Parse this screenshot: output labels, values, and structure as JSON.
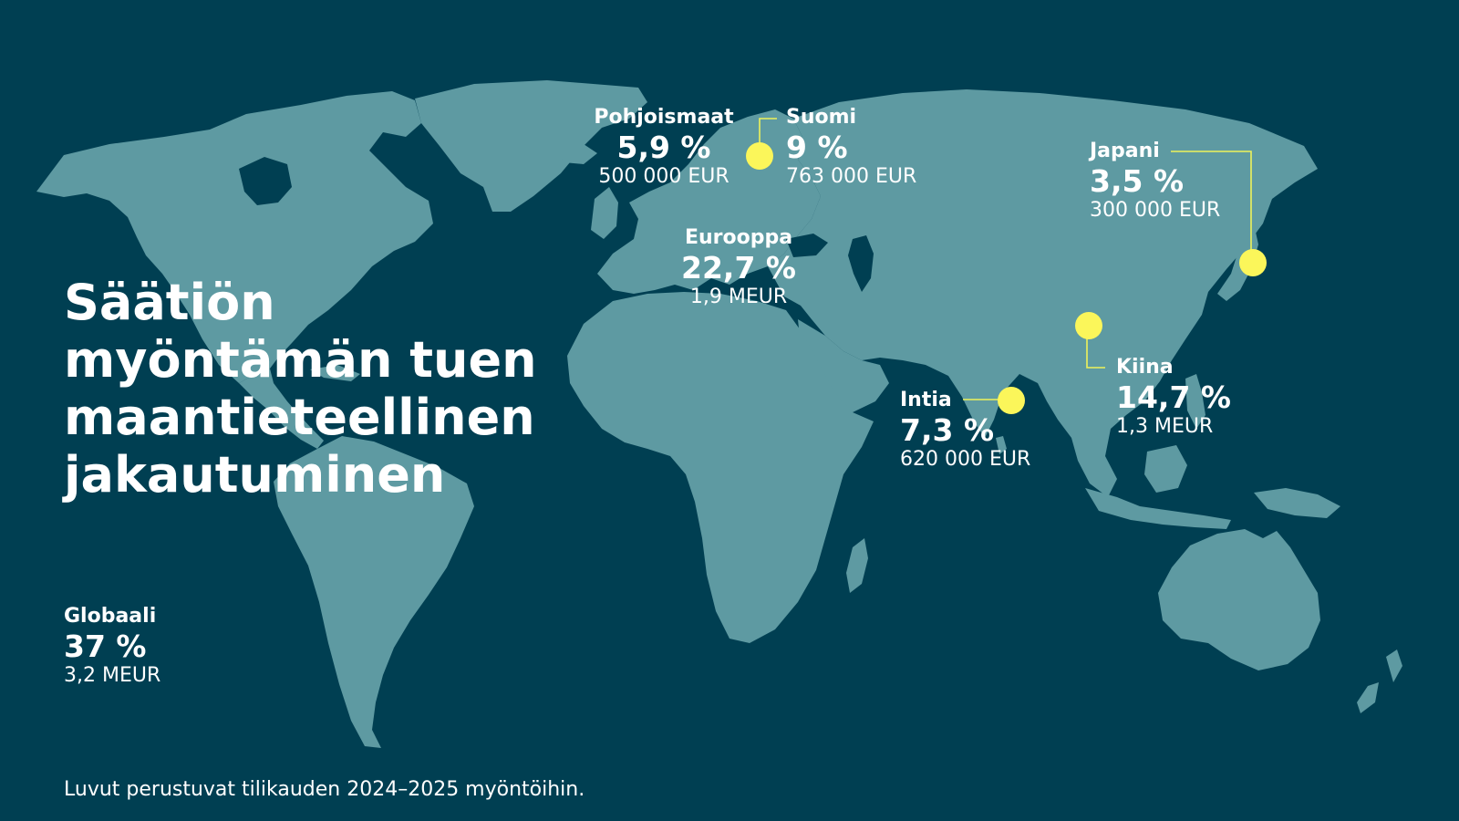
{
  "title": {
    "line1": "Säätiön",
    "line2": "myöntämän tuen",
    "line3": "maantieteellinen",
    "line4": "jakautuminen"
  },
  "regions": {
    "pohjoismaat": {
      "name": "Pohjoismaat",
      "pct": "5,9 %",
      "amount": "500 000 EUR"
    },
    "suomi": {
      "name": "Suomi",
      "pct": "9 %",
      "amount": "763 000 EUR"
    },
    "japani": {
      "name": "Japani",
      "pct": "3,5 %",
      "amount": "300 000 EUR"
    },
    "eurooppa": {
      "name": "Eurooppa",
      "pct": "22,7 %",
      "amount": "1,9 MEUR"
    },
    "kiina": {
      "name": "Kiina",
      "pct": "14,7 %",
      "amount": "1,3 MEUR"
    },
    "intia": {
      "name": "Intia",
      "pct": "7,3 %",
      "amount": "620 000 EUR"
    },
    "globaali": {
      "name": "Globaali",
      "pct": "37 %",
      "amount": "3,2 MEUR"
    }
  },
  "footnote": "Luvut perustuvat tilikauden 2024–2025 myöntöihin.",
  "colors": {
    "background": "#003f52",
    "land": "#5e9aa2",
    "marker": "#fbf65a",
    "text": "#ffffff"
  }
}
